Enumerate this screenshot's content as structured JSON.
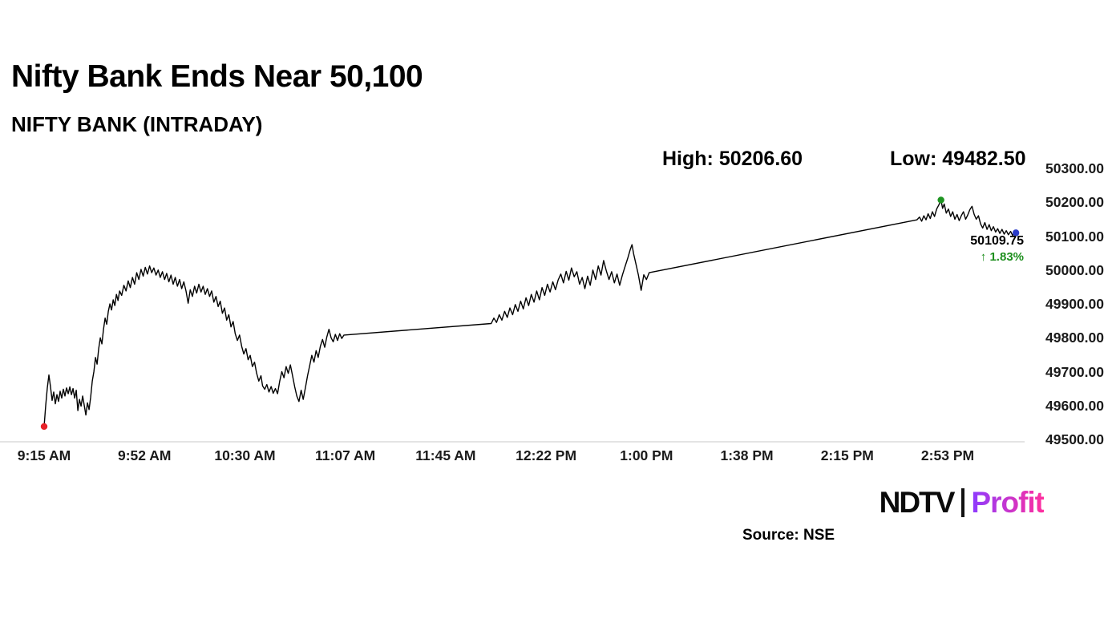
{
  "header": {
    "title": "Nifty Bank Ends Near 50,100",
    "subtitle": "NIFTY BANK (INTRADAY)"
  },
  "stats": {
    "high_label": "High: 50206.60",
    "low_label": "Low: 49482.50"
  },
  "chart_data": {
    "type": "line",
    "title": "NIFTY BANK (INTRADAY)",
    "high": 50206.6,
    "low": 49482.5,
    "last_value_label": "50109.75",
    "change_label": "↑ 1.83%",
    "change_color": "#1e8f1e",
    "ylim": [
      49500,
      50300
    ],
    "grid": false,
    "legend": false,
    "x_axis_line_color": "#c9c9c9",
    "x_unit": "minutes since 9:15 AM",
    "y_ticks": [
      {
        "value": 50300,
        "label": "50300.00"
      },
      {
        "value": 50200,
        "label": "50200.00"
      },
      {
        "value": 50100,
        "label": "50100.00"
      },
      {
        "value": 50000,
        "label": "50000.00"
      },
      {
        "value": 49900,
        "label": "49900.00"
      },
      {
        "value": 49800,
        "label": "49800.00"
      },
      {
        "value": 49700,
        "label": "49700.00"
      },
      {
        "value": 49600,
        "label": "49600.00"
      },
      {
        "value": 49500,
        "label": "49500.00"
      }
    ],
    "x_ticks": [
      {
        "t": 0,
        "label": "9:15 AM"
      },
      {
        "t": 37.5,
        "label": "9:52 AM"
      },
      {
        "t": 75,
        "label": "10:30 AM"
      },
      {
        "t": 112.5,
        "label": "11:07 AM"
      },
      {
        "t": 150,
        "label": "11:45 AM"
      },
      {
        "t": 187.5,
        "label": "12:22 PM"
      },
      {
        "t": 225,
        "label": "1:00 PM"
      },
      {
        "t": 262.5,
        "label": "1:38 PM"
      },
      {
        "t": 300,
        "label": "2:15 PM"
      },
      {
        "t": 337.5,
        "label": "2:53 PM"
      }
    ],
    "markers": [
      {
        "name": "session-open",
        "t": 0,
        "price": 49538,
        "color": "#e8232a"
      },
      {
        "name": "session-high",
        "t": 335,
        "price": 50206.6,
        "color": "#1e9421"
      },
      {
        "name": "session-close",
        "t": 363,
        "price": 50109.75,
        "color": "#2b3cc9"
      }
    ],
    "series": [
      {
        "name": "NIFTY BANK",
        "color": "#000000",
        "points": [
          [
            0,
            49538
          ],
          [
            0.6,
            49600
          ],
          [
            1.2,
            49652
          ],
          [
            1.8,
            49690
          ],
          [
            2.4,
            49655
          ],
          [
            3,
            49615
          ],
          [
            3.6,
            49640
          ],
          [
            4.2,
            49605
          ],
          [
            4.8,
            49632
          ],
          [
            5.4,
            49612
          ],
          [
            6,
            49642
          ],
          [
            6.6,
            49622
          ],
          [
            7.2,
            49648
          ],
          [
            7.8,
            49628
          ],
          [
            8.4,
            49652
          ],
          [
            9,
            49635
          ],
          [
            9.6,
            49655
          ],
          [
            10.2,
            49632
          ],
          [
            10.8,
            49650
          ],
          [
            11.4,
            49622
          ],
          [
            12,
            49645
          ],
          [
            12.6,
            49585
          ],
          [
            13.2,
            49618
          ],
          [
            13.8,
            49598
          ],
          [
            14.4,
            49628
          ],
          [
            15,
            49600
          ],
          [
            15.6,
            49572
          ],
          [
            16.2,
            49608
          ],
          [
            16.8,
            49588
          ],
          [
            17.4,
            49625
          ],
          [
            18,
            49672
          ],
          [
            18.6,
            49700
          ],
          [
            19.2,
            49742
          ],
          [
            19.8,
            49722
          ],
          [
            20.4,
            49768
          ],
          [
            21,
            49800
          ],
          [
            21.6,
            49782
          ],
          [
            22.2,
            49825
          ],
          [
            22.8,
            49858
          ],
          [
            23.4,
            49840
          ],
          [
            24,
            49878
          ],
          [
            24.6,
            49900
          ],
          [
            25.2,
            49882
          ],
          [
            25.8,
            49912
          ],
          [
            26.4,
            49895
          ],
          [
            27,
            49928
          ],
          [
            27.6,
            49910
          ],
          [
            28.2,
            49938
          ],
          [
            29,
            49925
          ],
          [
            29.8,
            49955
          ],
          [
            30.6,
            49938
          ],
          [
            31.4,
            49968
          ],
          [
            32.2,
            49948
          ],
          [
            33,
            49978
          ],
          [
            33.8,
            49958
          ],
          [
            34.6,
            49992
          ],
          [
            35.4,
            49972
          ],
          [
            36.2,
            50002
          ],
          [
            37,
            49982
          ],
          [
            37.8,
            50008
          ],
          [
            38.6,
            49988
          ],
          [
            39.4,
            50012
          ],
          [
            40.2,
            49992
          ],
          [
            41,
            50006
          ],
          [
            41.8,
            49985
          ],
          [
            42.6,
            50000
          ],
          [
            43.4,
            49978
          ],
          [
            44.2,
            49995
          ],
          [
            45,
            49972
          ],
          [
            45.8,
            49990
          ],
          [
            46.6,
            49965
          ],
          [
            47.4,
            49985
          ],
          [
            48.2,
            49958
          ],
          [
            49,
            49978
          ],
          [
            49.8,
            49952
          ],
          [
            50.6,
            49972
          ],
          [
            51.4,
            49945
          ],
          [
            52.2,
            49965
          ],
          [
            53,
            49938
          ],
          [
            53.8,
            49902
          ],
          [
            54.6,
            49942
          ],
          [
            55.4,
            49922
          ],
          [
            56.2,
            49952
          ],
          [
            57,
            49932
          ],
          [
            57.8,
            49958
          ],
          [
            58.6,
            49935
          ],
          [
            59.4,
            49952
          ],
          [
            60.2,
            49928
          ],
          [
            61,
            49945
          ],
          [
            61.8,
            49922
          ],
          [
            62.6,
            49938
          ],
          [
            63.4,
            49905
          ],
          [
            64.2,
            49922
          ],
          [
            65,
            49892
          ],
          [
            65.8,
            49908
          ],
          [
            66.6,
            49872
          ],
          [
            67.4,
            49888
          ],
          [
            68.2,
            49852
          ],
          [
            69,
            49868
          ],
          [
            69.8,
            49832
          ],
          [
            70.6,
            49848
          ],
          [
            71.4,
            49812
          ],
          [
            72.2,
            49792
          ],
          [
            73,
            49808
          ],
          [
            73.8,
            49775
          ],
          [
            74.6,
            49752
          ],
          [
            75.4,
            49768
          ],
          [
            76.2,
            49735
          ],
          [
            77,
            49748
          ],
          [
            77.8,
            49715
          ],
          [
            78.6,
            49728
          ],
          [
            79.4,
            49695
          ],
          [
            80.2,
            49672
          ],
          [
            81,
            49688
          ],
          [
            81.6,
            49658
          ],
          [
            82.4,
            49648
          ],
          [
            83.2,
            49662
          ],
          [
            84,
            49640
          ],
          [
            84.8,
            49656
          ],
          [
            85.6,
            49636
          ],
          [
            86.4,
            49650
          ],
          [
            87.2,
            49635
          ],
          [
            88,
            49672
          ],
          [
            88.8,
            49700
          ],
          [
            89.6,
            49682
          ],
          [
            90.4,
            49715
          ],
          [
            91.2,
            49695
          ],
          [
            92,
            49720
          ],
          [
            92.8,
            49688
          ],
          [
            93.6,
            49655
          ],
          [
            94.4,
            49628
          ],
          [
            95.2,
            49612
          ],
          [
            96,
            49645
          ],
          [
            96.8,
            49618
          ],
          [
            97.6,
            49652
          ],
          [
            98.4,
            49688
          ],
          [
            99.2,
            49718
          ],
          [
            100,
            49748
          ],
          [
            100.8,
            49728
          ],
          [
            101.6,
            49762
          ],
          [
            102.4,
            49742
          ],
          [
            103.2,
            49775
          ],
          [
            104,
            49795
          ],
          [
            104.8,
            49772
          ],
          [
            105.6,
            49802
          ],
          [
            106.4,
            49825
          ],
          [
            107.2,
            49800
          ],
          [
            108,
            49788
          ],
          [
            108.8,
            49810
          ],
          [
            109.6,
            49792
          ],
          [
            110.4,
            49812
          ],
          [
            111.2,
            49798
          ],
          [
            112,
            49808
          ],
          [
            167,
            49842
          ],
          [
            168,
            49858
          ],
          [
            169,
            49845
          ],
          [
            170,
            49868
          ],
          [
            171,
            49852
          ],
          [
            172,
            49878
          ],
          [
            173,
            49860
          ],
          [
            174,
            49888
          ],
          [
            175,
            49868
          ],
          [
            176,
            49898
          ],
          [
            177,
            49878
          ],
          [
            178,
            49908
          ],
          [
            179,
            49885
          ],
          [
            180,
            49918
          ],
          [
            181,
            49895
          ],
          [
            182,
            49928
          ],
          [
            183,
            49905
          ],
          [
            184,
            49938
          ],
          [
            185,
            49912
          ],
          [
            186,
            49948
          ],
          [
            187,
            49925
          ],
          [
            188,
            49958
          ],
          [
            189,
            49935
          ],
          [
            190,
            49965
          ],
          [
            191,
            49942
          ],
          [
            192,
            49970
          ],
          [
            193,
            49988
          ],
          [
            194,
            49962
          ],
          [
            195,
            49996
          ],
          [
            196,
            49970
          ],
          [
            197,
            50006
          ],
          [
            198,
            49980
          ],
          [
            199,
            49995
          ],
          [
            200,
            49958
          ],
          [
            201,
            49978
          ],
          [
            202,
            49945
          ],
          [
            203,
            49982
          ],
          [
            204,
            49955
          ],
          [
            205,
            50000
          ],
          [
            206,
            49972
          ],
          [
            207,
            50012
          ],
          [
            208,
            49985
          ],
          [
            209,
            50028
          ],
          [
            210,
            49998
          ],
          [
            211,
            49972
          ],
          [
            212,
            49995
          ],
          [
            213,
            49962
          ],
          [
            214,
            49988
          ],
          [
            215,
            49955
          ],
          [
            216,
            49985
          ],
          [
            217,
            50010
          ],
          [
            218,
            50035
          ],
          [
            219,
            50062
          ],
          [
            219.6,
            50075
          ],
          [
            220.2,
            50048
          ],
          [
            221,
            50020
          ],
          [
            222,
            49985
          ],
          [
            223,
            49940
          ],
          [
            224,
            49986
          ],
          [
            225,
            49972
          ],
          [
            226,
            49992
          ],
          [
            326,
            50148
          ],
          [
            327,
            50156
          ],
          [
            327.8,
            50144
          ],
          [
            328.6,
            50160
          ],
          [
            329.4,
            50148
          ],
          [
            330.2,
            50166
          ],
          [
            331,
            50152
          ],
          [
            331.8,
            50172
          ],
          [
            332.6,
            50158
          ],
          [
            333.4,
            50180
          ],
          [
            334.2,
            50192
          ],
          [
            335,
            50206.6
          ],
          [
            335.6,
            50182
          ],
          [
            336.2,
            50195
          ],
          [
            337,
            50168
          ],
          [
            337.8,
            50180
          ],
          [
            338.6,
            50158
          ],
          [
            339.4,
            50172
          ],
          [
            340.2,
            50150
          ],
          [
            341,
            50164
          ],
          [
            341.8,
            50146
          ],
          [
            342.6,
            50160
          ],
          [
            343.4,
            50172
          ],
          [
            344.2,
            50150
          ],
          [
            345,
            50162
          ],
          [
            345.8,
            50178
          ],
          [
            346.6,
            50188
          ],
          [
            347.4,
            50164
          ],
          [
            348.2,
            50150
          ],
          [
            349,
            50160
          ],
          [
            349.8,
            50136
          ],
          [
            350.6,
            50124
          ],
          [
            351.4,
            50140
          ],
          [
            352.2,
            50120
          ],
          [
            353,
            50134
          ],
          [
            353.8,
            50116
          ],
          [
            354.6,
            50128
          ],
          [
            355.4,
            50112
          ],
          [
            356.2,
            50122
          ],
          [
            357,
            50108
          ],
          [
            357.8,
            50120
          ],
          [
            358.6,
            50106
          ],
          [
            359.4,
            50116
          ],
          [
            360.2,
            50104
          ],
          [
            361,
            50114
          ],
          [
            361.8,
            50102
          ],
          [
            362.6,
            50112
          ],
          [
            363,
            50109.75
          ]
        ]
      }
    ]
  },
  "footer": {
    "source": "Source: NSE",
    "logo": {
      "ndtv": "NDTV",
      "profit": "Profit",
      "profit_colors": [
        "#8d3bff",
        "#ff2f9e"
      ]
    }
  }
}
